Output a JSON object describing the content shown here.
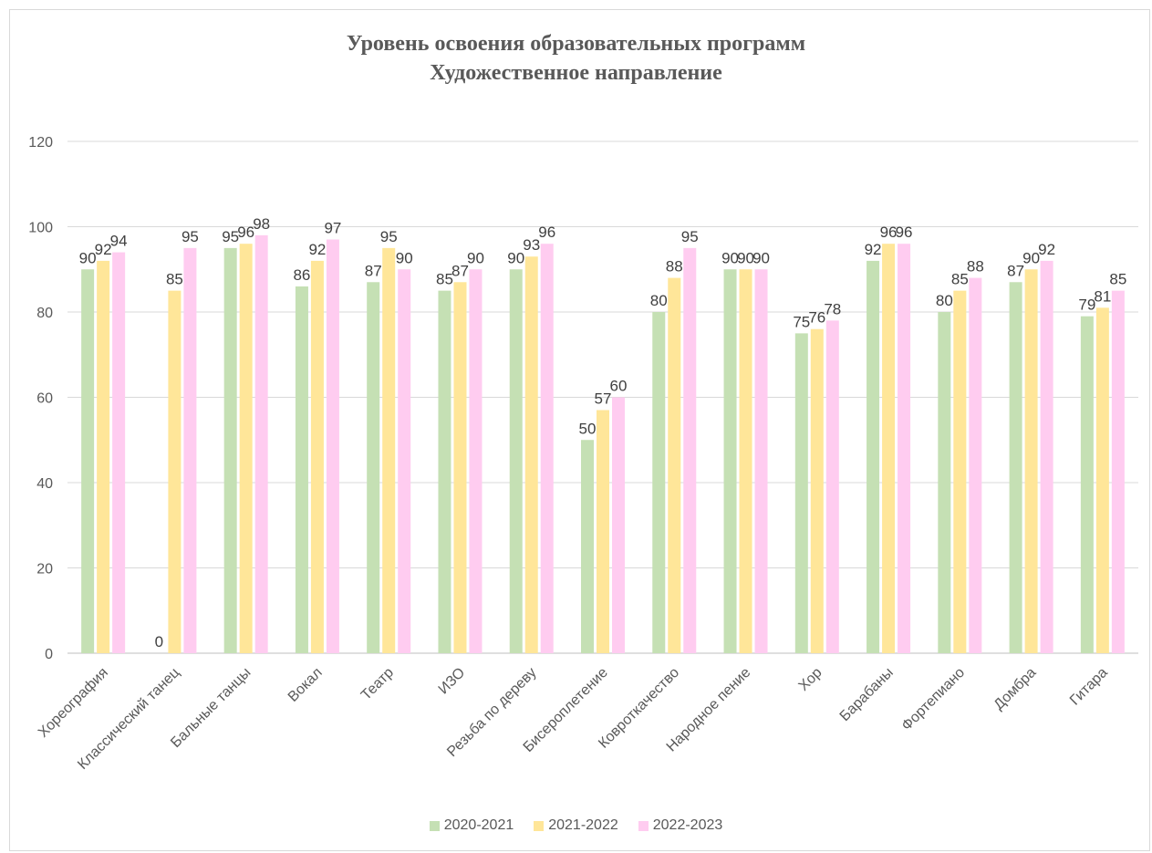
{
  "chart_data": {
    "type": "bar",
    "title_line1": "Уровень освоения образовательных программ",
    "title_line2": "Художественное направление",
    "categories": [
      "Хореография",
      "Классический танец",
      "Бальные танцы",
      "Вокал",
      "Театр",
      "ИЗО",
      "Резьба по дереву",
      "Бисероплетение",
      "Ковроткачество",
      "Народное пение",
      "Хор",
      "Барабаны",
      "Фортепиано",
      "Домбра",
      "Гитара"
    ],
    "series": [
      {
        "name": "2020-2021",
        "color": "#c5e0b4",
        "values": [
          90,
          0,
          95,
          86,
          87,
          85,
          90,
          50,
          80,
          90,
          75,
          92,
          80,
          87,
          79
        ]
      },
      {
        "name": "2021-2022",
        "color": "#ffe699",
        "values": [
          92,
          85,
          96,
          92,
          95,
          87,
          93,
          57,
          88,
          90,
          76,
          96,
          85,
          90,
          81
        ]
      },
      {
        "name": "2022-2023",
        "color": "#ffccf0",
        "values": [
          94,
          95,
          98,
          97,
          90,
          90,
          96,
          60,
          95,
          90,
          78,
          96,
          88,
          92,
          85
        ]
      }
    ],
    "ylim": [
      0,
      120
    ],
    "yticks": [
      0,
      20,
      40,
      60,
      80,
      100,
      120
    ],
    "grid": true,
    "legend_position": "bottom"
  }
}
